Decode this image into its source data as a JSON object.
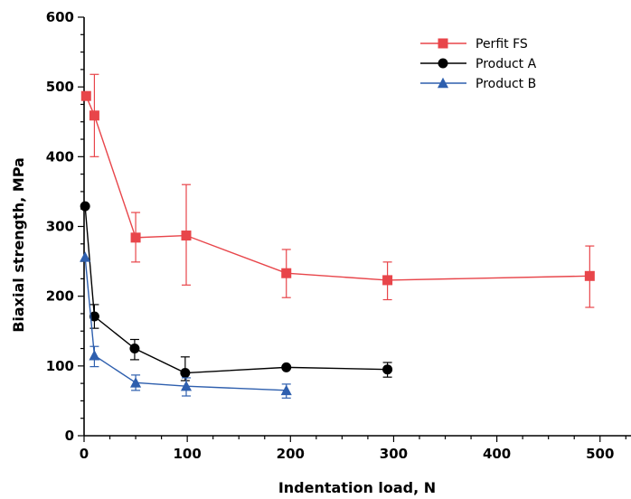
{
  "chart_data": {
    "type": "line",
    "xlabel": "Indentation load, N",
    "ylabel": "Biaxial strength, MPa",
    "xlim": [
      0,
      530
    ],
    "ylim": [
      0,
      600
    ],
    "xticks": [
      0,
      100,
      200,
      300,
      400,
      500
    ],
    "yticks": [
      0,
      100,
      200,
      300,
      400,
      500,
      600
    ],
    "grid": false,
    "legend_position": "top-right",
    "series": [
      {
        "name": "Perfit FS",
        "marker": "square",
        "color": "#e8454a",
        "points": [
          {
            "x": 2,
            "y": 487,
            "err_lo": null,
            "err_hi": null
          },
          {
            "x": 10,
            "y": 459,
            "err_lo": 400,
            "err_hi": 518
          },
          {
            "x": 50,
            "y": 284,
            "err_lo": 249,
            "err_hi": 320
          },
          {
            "x": 99,
            "y": 287,
            "err_lo": 216,
            "err_hi": 360
          },
          {
            "x": 196,
            "y": 233,
            "err_lo": 198,
            "err_hi": 267
          },
          {
            "x": 294,
            "y": 223,
            "err_lo": 195,
            "err_hi": 249
          },
          {
            "x": 490,
            "y": 229,
            "err_lo": 184,
            "err_hi": 272
          }
        ]
      },
      {
        "name": "Product A",
        "marker": "circle",
        "color": "#000000",
        "points": [
          {
            "x": 1,
            "y": 329,
            "err_lo": null,
            "err_hi": null
          },
          {
            "x": 10,
            "y": 171,
            "err_lo": 154,
            "err_hi": 188
          },
          {
            "x": 49,
            "y": 125,
            "err_lo": 109,
            "err_hi": 138
          },
          {
            "x": 98,
            "y": 90,
            "err_lo": 79,
            "err_hi": 113
          },
          {
            "x": 196,
            "y": 98,
            "err_lo": null,
            "err_hi": null
          },
          {
            "x": 294,
            "y": 95,
            "err_lo": 84,
            "err_hi": 105
          }
        ]
      },
      {
        "name": "Product B",
        "marker": "triangle",
        "color": "#2e5fae",
        "points": [
          {
            "x": 1,
            "y": 256,
            "err_lo": null,
            "err_hi": null
          },
          {
            "x": 10,
            "y": 115,
            "err_lo": 99,
            "err_hi": 128
          },
          {
            "x": 50,
            "y": 76,
            "err_lo": 65,
            "err_hi": 87
          },
          {
            "x": 99,
            "y": 71,
            "err_lo": 57,
            "err_hi": 83
          },
          {
            "x": 196,
            "y": 65,
            "err_lo": 54,
            "err_hi": 74
          }
        ]
      }
    ]
  }
}
